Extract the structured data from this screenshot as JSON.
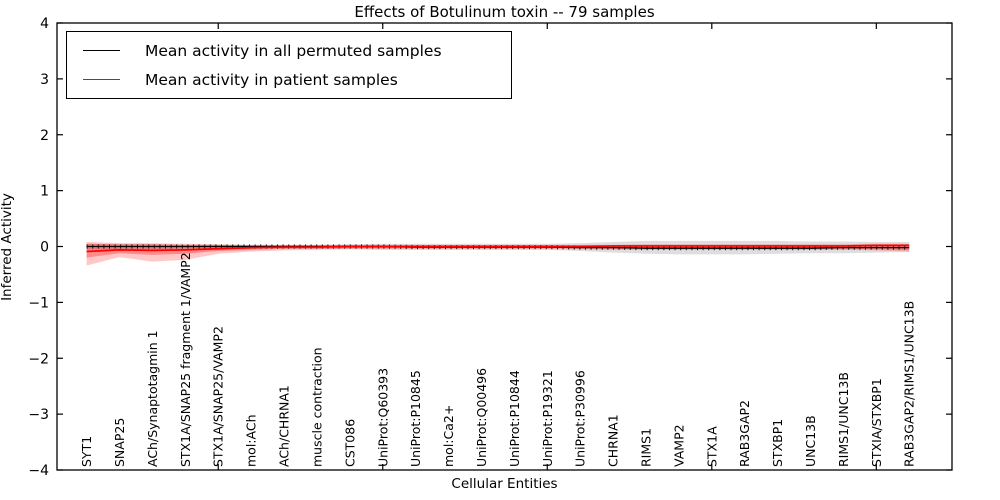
{
  "figure": {
    "title": "Effects of Botulinum toxin -- 79 samples",
    "xlabel": "Cellular Entities",
    "ylabel": "Inferred Activity"
  },
  "legend": {
    "entries": [
      {
        "label": "Mean activity in all permuted samples",
        "color": "#000000"
      },
      {
        "label": "Mean activity in patient samples",
        "color": "#ff0000"
      }
    ]
  },
  "chart_data": {
    "type": "line",
    "title": "Effects of Botulinum toxin -- 79 samples",
    "xlabel": "Cellular Entities",
    "ylabel": "Inferred Activity",
    "categories": [
      "SYT1",
      "SNAP25",
      "ACh/Synaptotagmin 1",
      "STX1A/SNAP25 fragment 1/VAMP2",
      "STX1A/SNAP25/VAMP2",
      "mol:ACh",
      "ACh/CHRNA1",
      "muscle contraction",
      "CST086",
      "UniProt:Q60393",
      "UniProt:P10845",
      "mol:Ca2+",
      "UniProt:Q00496",
      "UniProt:P10844",
      "UniProt:P19321",
      "UniProt:P30996",
      "CHRNA1",
      "RIMS1",
      "VAMP2",
      "STX1A",
      "RAB3GAP2",
      "STXBP1",
      "UNC13B",
      "RIMS1/UNC13B",
      "STXIA/STXBP1",
      "RAB3GAP2/RIMS1/UNC13B"
    ],
    "series": [
      {
        "name": "Mean activity in all permuted samples",
        "color": "#000000",
        "marker": "plus-ticks",
        "values": [
          0,
          0,
          0,
          0,
          0,
          0,
          0,
          0,
          0,
          0,
          -0.01,
          -0.01,
          -0.01,
          -0.01,
          -0.01,
          -0.02,
          -0.02,
          -0.03,
          -0.03,
          -0.03,
          -0.03,
          -0.03,
          -0.03,
          -0.02,
          -0.02,
          -0.02
        ]
      },
      {
        "name": "Mean activity in patient samples",
        "color": "#ff0000",
        "marker": "none",
        "values": [
          -0.09,
          -0.06,
          -0.07,
          -0.06,
          -0.04,
          -0.02,
          -0.01,
          -0.01,
          0,
          0,
          0,
          0,
          0,
          0,
          0,
          0,
          0.01,
          0.01,
          0.01,
          0.01,
          0.01,
          0.01,
          0.01,
          0.01,
          0.02,
          0.02
        ]
      }
    ],
    "bands": [
      {
        "name": "permuted-sample-range",
        "color": "rgba(0,0,0,0.13)",
        "upper": [
          0.05,
          0.04,
          0.04,
          0.03,
          0.03,
          0.03,
          0.03,
          0.03,
          0.04,
          0.05,
          0.05,
          0.05,
          0.05,
          0.05,
          0.05,
          0.06,
          0.08,
          0.1,
          0.1,
          0.1,
          0.1,
          0.1,
          0.09,
          0.09,
          0.08,
          0.08
        ],
        "lower": [
          -0.06,
          -0.05,
          -0.05,
          -0.04,
          -0.04,
          -0.04,
          -0.04,
          -0.04,
          -0.05,
          -0.06,
          -0.06,
          -0.06,
          -0.06,
          -0.06,
          -0.06,
          -0.08,
          -0.11,
          -0.13,
          -0.14,
          -0.14,
          -0.14,
          -0.13,
          -0.12,
          -0.12,
          -0.11,
          -0.1
        ]
      },
      {
        "name": "patient-sample-range-outer",
        "color": "rgba(255,0,0,0.22)",
        "upper": [
          0.08,
          0.06,
          0.06,
          0.05,
          0.04,
          0.03,
          0.03,
          0.03,
          0.03,
          0.03,
          0.03,
          0.03,
          0.03,
          0.03,
          0.03,
          0.03,
          0.03,
          0.04,
          0.04,
          0.04,
          0.04,
          0.04,
          0.04,
          0.04,
          0.05,
          0.05
        ],
        "lower": [
          -0.34,
          -0.19,
          -0.27,
          -0.24,
          -0.13,
          -0.09,
          -0.07,
          -0.06,
          -0.05,
          -0.05,
          -0.05,
          -0.05,
          -0.05,
          -0.05,
          -0.05,
          -0.05,
          -0.06,
          -0.06,
          -0.06,
          -0.06,
          -0.06,
          -0.06,
          -0.06,
          -0.06,
          -0.07,
          -0.09
        ],
        "note": ""
      },
      {
        "name": "patient-sample-range-inner",
        "color": "rgba(255,0,0,0.30)",
        "upper": [
          0.05,
          0.04,
          0.04,
          0.03,
          0.03,
          0.02,
          0.02,
          0.02,
          0.02,
          0.02,
          0.02,
          0.02,
          0.02,
          0.02,
          0.02,
          0.02,
          0.02,
          0.02,
          0.02,
          0.02,
          0.02,
          0.02,
          0.02,
          0.02,
          0.03,
          0.03
        ],
        "lower": [
          -0.2,
          -0.12,
          -0.15,
          -0.13,
          -0.08,
          -0.06,
          -0.04,
          -0.04,
          -0.03,
          -0.03,
          -0.03,
          -0.03,
          -0.03,
          -0.03,
          -0.03,
          -0.03,
          -0.04,
          -0.04,
          -0.04,
          -0.04,
          -0.04,
          -0.04,
          -0.04,
          -0.04,
          -0.05,
          -0.06
        ]
      }
    ],
    "layout": {
      "ylim": [
        -4,
        4
      ],
      "yticks": [
        -4,
        -3,
        -2,
        -1,
        0,
        1,
        2,
        3,
        4
      ],
      "ytick_labels": [
        "−4",
        "−3",
        "−2",
        "−1",
        "0",
        "1",
        "2",
        "3",
        "4"
      ],
      "xlim": [
        0.1,
        27.3
      ],
      "xticks": [
        5,
        10,
        15,
        20,
        25
      ],
      "xtick_labels_shown": false,
      "grid": false,
      "legend_position": "upper left",
      "category_labels_inside_plot": true,
      "category_label_rotation_deg": 90
    }
  }
}
